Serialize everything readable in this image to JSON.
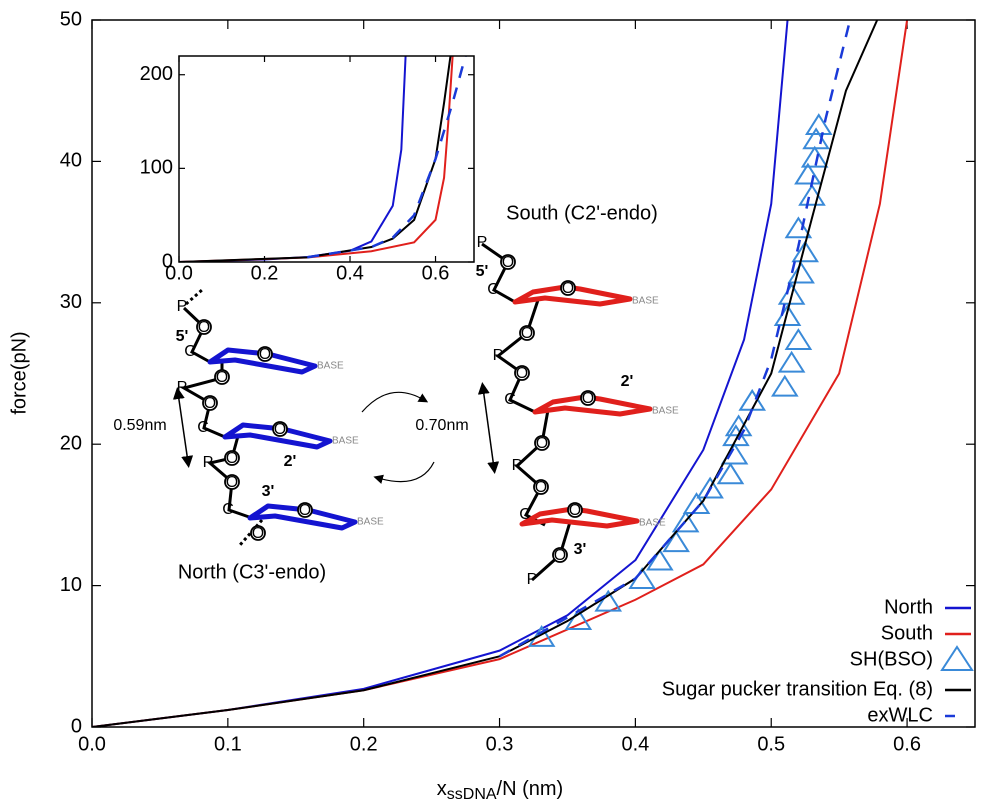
{
  "chart_data": [
    {
      "type": "line",
      "ylabel": "force(pN)",
      "xlabel_parts": [
        "x",
        "ssDNA",
        "/N (nm)"
      ],
      "xlim": [
        0,
        0.65
      ],
      "ylim": [
        0,
        50
      ],
      "xticks": [
        {
          "value": 0,
          "label": "0.0"
        },
        0.1,
        0.2,
        0.3,
        0.4,
        0.5,
        0.6
      ],
      "yticks": [
        0,
        10,
        20,
        30,
        40,
        50
      ],
      "legend": "lower right",
      "series": [
        {
          "name": "North",
          "type": "line",
          "color": "#1414d0",
          "x": [
            0,
            0.1,
            0.2,
            0.3,
            0.35,
            0.4,
            0.45,
            0.48,
            0.5,
            0.512
          ],
          "values": [
            0,
            1.2,
            2.7,
            5.4,
            7.9,
            11.8,
            19.6,
            27.4,
            37,
            50
          ]
        },
        {
          "name": "South",
          "type": "line",
          "color": "#e0201c",
          "x": [
            0,
            0.1,
            0.2,
            0.3,
            0.4,
            0.45,
            0.5,
            0.55,
            0.58,
            0.6
          ],
          "values": [
            0,
            1.2,
            2.6,
            4.8,
            9,
            11.5,
            16.8,
            25,
            37,
            50
          ]
        },
        {
          "name": "SH(BSO)",
          "type": "scatter",
          "color": "#3a8ad8",
          "x": [
            0.331,
            0.358,
            0.38,
            0.405,
            0.418,
            0.43,
            0.437,
            0.445,
            0.455,
            0.47,
            0.473,
            0.474,
            0.476,
            0.486,
            0.51,
            0.515,
            0.52,
            0.512,
            0.515,
            0.522,
            0.525,
            0.52,
            0.53,
            0.527,
            0.532,
            0.533,
            0.535
          ],
          "values": [
            6.3,
            7.5,
            8.8,
            10.4,
            11.7,
            13,
            14.4,
            15.7,
            16.8,
            17.8,
            19.2,
            20.5,
            21.2,
            23,
            24,
            25.7,
            27.3,
            29,
            30.5,
            32,
            33.5,
            35.2,
            37.5,
            39,
            40.2,
            41.5,
            42.5
          ]
        },
        {
          "name": "Sugar pucker transition Eq. (8)",
          "type": "line",
          "color": "#000000",
          "x": [
            0,
            0.1,
            0.2,
            0.3,
            0.35,
            0.4,
            0.45,
            0.5,
            0.53,
            0.555,
            0.578
          ],
          "values": [
            0,
            1.2,
            2.6,
            5,
            7.5,
            10.5,
            16,
            25,
            36,
            45,
            50
          ]
        },
        {
          "name": "exWLC",
          "type": "line",
          "dash": true,
          "color": "#1a3ad8",
          "x": [
            0.3,
            0.4,
            0.45,
            0.48,
            0.5,
            0.52,
            0.54,
            0.558
          ],
          "values": [
            5,
            10.5,
            16,
            21,
            26,
            34,
            43,
            50
          ]
        }
      ],
      "annotations": {
        "north": "North (C3'-endo)",
        "south": "South (C2'-endo)",
        "north_spacing": "0.59nm",
        "south_spacing": "0.70nm",
        "atoms": {
          "P": "P",
          "O": "O",
          "C": "C",
          "base": "BASE",
          "five": "5'",
          "two": "2'",
          "three": "3'"
        }
      }
    },
    {
      "type": "line",
      "xlim": [
        0,
        0.69
      ],
      "ylim": [
        0,
        220
      ],
      "xticks": [
        {
          "value": 0,
          "label": "0.0"
        },
        0.2,
        0.4,
        0.6
      ],
      "yticks": [
        0,
        100,
        200
      ],
      "series": [
        {
          "type": "line",
          "color": "#1414d0",
          "x": [
            0,
            0.2,
            0.3,
            0.4,
            0.45,
            0.5,
            0.52,
            0.53
          ],
          "values": [
            0,
            2.7,
            5.4,
            12,
            22,
            60,
            120,
            220
          ]
        },
        {
          "type": "line",
          "color": "#e0201c",
          "x": [
            0,
            0.3,
            0.45,
            0.55,
            0.6,
            0.62,
            0.63,
            0.64
          ],
          "values": [
            0,
            4.8,
            11.5,
            21,
            45,
            90,
            150,
            220
          ]
        },
        {
          "type": "line",
          "color": "#000000",
          "x": [
            0,
            0.3,
            0.45,
            0.5,
            0.55,
            0.6,
            0.62,
            0.635
          ],
          "values": [
            0,
            5,
            16,
            25,
            45,
            110,
            170,
            220
          ]
        },
        {
          "type": "line",
          "dash": true,
          "color": "#1a3ad8",
          "x": [
            0.3,
            0.45,
            0.5,
            0.55,
            0.6,
            0.64,
            0.67
          ],
          "values": [
            5,
            16,
            26,
            50,
            110,
            170,
            220
          ]
        }
      ]
    }
  ]
}
